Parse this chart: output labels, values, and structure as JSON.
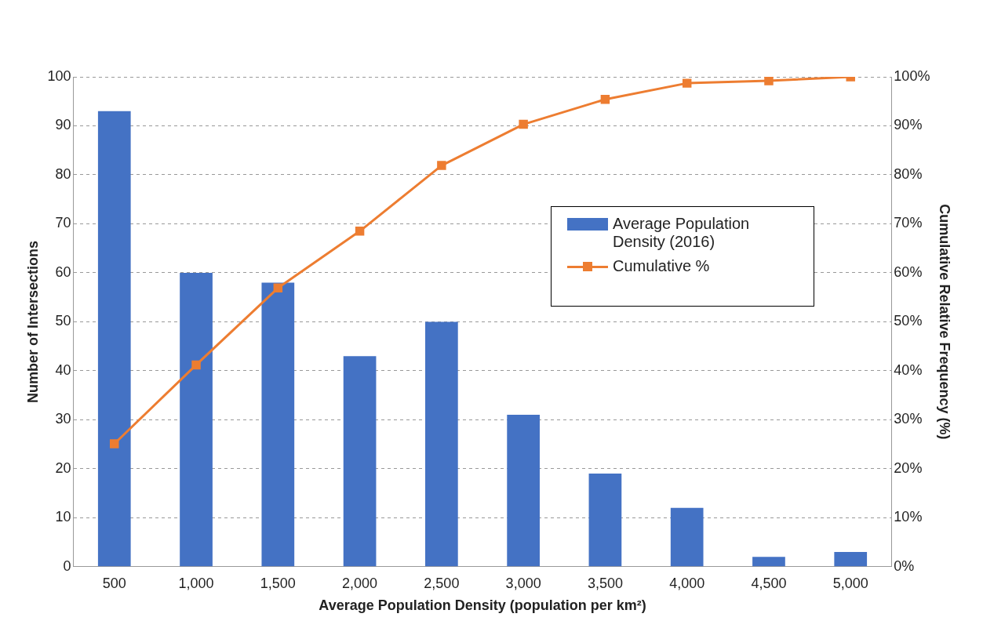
{
  "chart_data": {
    "type": "bar",
    "xlabel": "Average Population Density (population per km²)",
    "ylabel": "Number of Intersections",
    "y2label": "Cumulative Relative Frequency (%)",
    "categories": [
      "500",
      "1,000",
      "1,500",
      "2,000",
      "2,500",
      "3,000",
      "3,500",
      "4,000",
      "4,500",
      "5,000"
    ],
    "series": [
      {
        "name": "Average Population Density (2016)",
        "color": "#4472c4",
        "values": [
          93,
          60,
          58,
          43,
          50,
          31,
          19,
          12,
          2,
          3
        ]
      },
      {
        "name": "Cumulative %",
        "type": "line",
        "axis": "y2",
        "color": "#ed7d31",
        "marker": "square",
        "values": [
          25.1,
          41.2,
          56.9,
          68.5,
          81.9,
          90.3,
          95.4,
          98.7,
          99.2,
          100
        ]
      }
    ],
    "ylim": [
      0,
      100
    ],
    "yticks": [
      0,
      10,
      20,
      30,
      40,
      50,
      60,
      70,
      80,
      90,
      100
    ],
    "y2lim": [
      0,
      100
    ],
    "y2ticks": [
      {
        "value": 0,
        "label": "0%"
      },
      {
        "value": 10,
        "label": "10%"
      },
      {
        "value": 20,
        "label": "20%"
      },
      {
        "value": 30,
        "label": "30%"
      },
      {
        "value": 40,
        "label": "40%"
      },
      {
        "value": 50,
        "label": "50%"
      },
      {
        "value": 60,
        "label": "60%"
      },
      {
        "value": 70,
        "label": "70%"
      },
      {
        "value": 80,
        "label": "80%"
      },
      {
        "value": 90,
        "label": "90%"
      },
      {
        "value": 100,
        "label": "100%"
      }
    ],
    "grid": "y",
    "legend": "right"
  }
}
